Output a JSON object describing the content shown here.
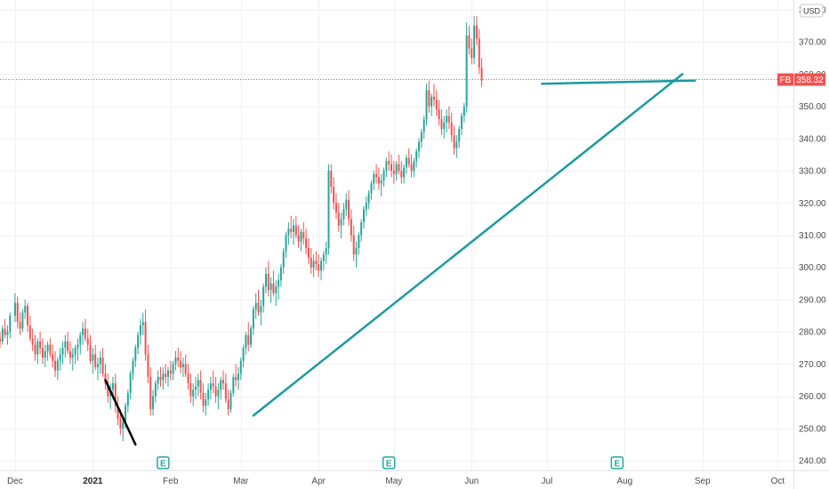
{
  "chart_data": {
    "type": "candlestick",
    "ticker": "FB",
    "currency": "USD",
    "last_price_label": "358.32",
    "last_price": 358.32,
    "ylim": [
      237,
      383
    ],
    "y_ticks": [
      240,
      250,
      260,
      270,
      280,
      290,
      300,
      310,
      320,
      330,
      340,
      350,
      360,
      370,
      380
    ],
    "x_ticks": [
      {
        "label": "Dec",
        "day": 0
      },
      {
        "label": "2021",
        "day": 31,
        "bold": true
      },
      {
        "label": "Feb",
        "day": 62
      },
      {
        "label": "Mar",
        "day": 90
      },
      {
        "label": "Apr",
        "day": 121
      },
      {
        "label": "May",
        "day": 151
      },
      {
        "label": "Jun",
        "day": 182
      },
      {
        "label": "Jul",
        "day": 212
      },
      {
        "label": "Aug",
        "day": 243
      },
      {
        "label": "Sep",
        "day": 274
      },
      {
        "label": "Oct",
        "day": 304
      }
    ],
    "x_range": [
      -6,
      306
    ],
    "earnings_markers": [
      {
        "label": "E",
        "day": 59
      },
      {
        "label": "E",
        "day": 149
      },
      {
        "label": "E",
        "day": 240
      }
    ],
    "colors": {
      "up": "#26a69a",
      "down": "#ef5350",
      "trendline": "#1a9ba0",
      "annotation": "#000000",
      "price_label_bg": "#ef5350",
      "grid": "#eef0f3"
    },
    "trendlines": [
      {
        "name": "black-decline",
        "from": {
          "day": 36,
          "price": 265
        },
        "to": {
          "day": 48,
          "price": 245
        },
        "color": "#000000"
      },
      {
        "name": "rising-support",
        "from": {
          "day": 95,
          "price": 254
        },
        "to": {
          "day": 266,
          "price": 360
        },
        "color": "#1a9ba0"
      },
      {
        "name": "horizontal-resistance",
        "from": {
          "day": 210,
          "price": 357
        },
        "to": {
          "day": 271,
          "price": 358
        },
        "color": "#1a9ba0"
      }
    ],
    "candles": [
      [
        -6,
        278,
        280,
        275,
        277
      ],
      [
        -5,
        277,
        282,
        276,
        281
      ],
      [
        -4,
        281,
        284,
        278,
        279
      ],
      [
        -3,
        279,
        282,
        276,
        280
      ],
      [
        -2,
        280,
        286,
        278,
        285
      ],
      [
        0,
        285,
        292,
        283,
        289
      ],
      [
        1,
        289,
        291,
        281,
        283
      ],
      [
        2,
        283,
        286,
        279,
        281
      ],
      [
        3,
        281,
        287,
        280,
        286
      ],
      [
        4,
        286,
        290,
        284,
        288
      ],
      [
        5,
        288,
        289,
        280,
        282
      ],
      [
        6,
        282,
        285,
        277,
        278
      ],
      [
        7,
        278,
        281,
        274,
        276
      ],
      [
        8,
        276,
        279,
        271,
        273
      ],
      [
        9,
        273,
        278,
        270,
        277
      ],
      [
        10,
        277,
        280,
        273,
        275
      ],
      [
        11,
        275,
        278,
        270,
        272
      ],
      [
        12,
        272,
        276,
        269,
        274
      ],
      [
        13,
        274,
        277,
        271,
        276
      ],
      [
        14,
        276,
        278,
        272,
        273
      ],
      [
        15,
        273,
        276,
        269,
        271
      ],
      [
        16,
        271,
        274,
        266,
        268
      ],
      [
        17,
        268,
        272,
        265,
        271
      ],
      [
        18,
        271,
        275,
        268,
        273
      ],
      [
        19,
        273,
        277,
        270,
        275
      ],
      [
        20,
        275,
        279,
        272,
        277
      ],
      [
        21,
        277,
        280,
        273,
        274
      ],
      [
        22,
        274,
        277,
        270,
        272
      ],
      [
        23,
        272,
        275,
        268,
        273
      ],
      [
        24,
        273,
        276,
        270,
        275
      ],
      [
        25,
        275,
        278,
        271,
        276
      ],
      [
        26,
        276,
        280,
        273,
        279
      ],
      [
        27,
        279,
        283,
        276,
        281
      ],
      [
        28,
        281,
        284,
        277,
        278
      ],
      [
        29,
        278,
        281,
        274,
        276
      ],
      [
        30,
        276,
        279,
        270,
        271
      ],
      [
        31,
        271,
        275,
        267,
        273
      ],
      [
        32,
        273,
        276,
        268,
        269
      ],
      [
        33,
        269,
        272,
        265,
        270
      ],
      [
        34,
        270,
        274,
        267,
        272
      ],
      [
        35,
        272,
        275,
        266,
        267
      ],
      [
        36,
        267,
        270,
        262,
        264
      ],
      [
        37,
        264,
        267,
        258,
        260
      ],
      [
        38,
        260,
        264,
        256,
        262
      ],
      [
        39,
        262,
        266,
        259,
        264
      ],
      [
        40,
        264,
        267,
        255,
        257
      ],
      [
        41,
        257,
        260,
        251,
        253
      ],
      [
        42,
        253,
        256,
        248,
        250
      ],
      [
        43,
        250,
        254,
        246,
        252
      ],
      [
        44,
        252,
        258,
        250,
        257
      ],
      [
        45,
        257,
        262,
        255,
        261
      ],
      [
        46,
        261,
        268,
        259,
        267
      ],
      [
        47,
        267,
        272,
        265,
        271
      ],
      [
        48,
        271,
        276,
        269,
        275
      ],
      [
        49,
        275,
        280,
        273,
        279
      ],
      [
        50,
        279,
        284,
        276,
        282
      ],
      [
        51,
        282,
        286,
        279,
        283
      ],
      [
        52,
        283,
        287,
        271,
        273
      ],
      [
        53,
        273,
        276,
        264,
        266
      ],
      [
        54,
        266,
        269,
        254,
        256
      ],
      [
        55,
        256,
        262,
        254,
        260
      ],
      [
        56,
        260,
        265,
        258,
        264
      ],
      [
        57,
        264,
        268,
        262,
        266
      ],
      [
        58,
        266,
        269,
        263,
        265
      ],
      [
        59,
        265,
        269,
        262,
        267
      ],
      [
        60,
        267,
        270,
        264,
        266
      ],
      [
        61,
        266,
        269,
        263,
        268
      ],
      [
        62,
        268,
        271,
        265,
        267
      ],
      [
        63,
        267,
        271,
        265,
        270
      ],
      [
        64,
        270,
        274,
        268,
        272
      ],
      [
        65,
        272,
        275,
        269,
        271
      ],
      [
        66,
        271,
        274,
        267,
        269
      ],
      [
        67,
        269,
        272,
        266,
        270
      ],
      [
        68,
        270,
        273,
        266,
        267
      ],
      [
        69,
        267,
        270,
        262,
        264
      ],
      [
        70,
        264,
        267,
        258,
        260
      ],
      [
        71,
        260,
        264,
        257,
        262
      ],
      [
        72,
        262,
        266,
        259,
        263
      ],
      [
        73,
        263,
        267,
        260,
        265
      ],
      [
        74,
        265,
        268,
        259,
        261
      ],
      [
        75,
        261,
        264,
        255,
        257
      ],
      [
        76,
        257,
        261,
        254,
        259
      ],
      [
        77,
        259,
        264,
        257,
        262
      ],
      [
        78,
        262,
        266,
        259,
        264
      ],
      [
        79,
        264,
        268,
        261,
        263
      ],
      [
        80,
        263,
        266,
        258,
        260
      ],
      [
        81,
        260,
        264,
        256,
        262
      ],
      [
        82,
        262,
        266,
        259,
        265
      ],
      [
        83,
        265,
        268,
        262,
        264
      ],
      [
        84,
        264,
        267,
        258,
        259
      ],
      [
        85,
        259,
        262,
        254,
        256
      ],
      [
        86,
        256,
        262,
        255,
        261
      ],
      [
        87,
        261,
        267,
        260,
        266
      ],
      [
        88,
        266,
        270,
        263,
        265
      ],
      [
        89,
        265,
        269,
        262,
        267
      ],
      [
        90,
        267,
        272,
        265,
        271
      ],
      [
        91,
        271,
        276,
        269,
        275
      ],
      [
        92,
        275,
        280,
        273,
        279
      ],
      [
        93,
        279,
        283,
        274,
        276
      ],
      [
        94,
        276,
        282,
        275,
        281
      ],
      [
        95,
        281,
        288,
        279,
        287
      ],
      [
        96,
        287,
        292,
        284,
        289
      ],
      [
        97,
        289,
        293,
        285,
        286
      ],
      [
        98,
        286,
        290,
        282,
        288
      ],
      [
        99,
        288,
        295,
        286,
        294
      ],
      [
        100,
        294,
        300,
        292,
        298
      ],
      [
        101,
        298,
        302,
        291,
        293
      ],
      [
        102,
        293,
        297,
        289,
        295
      ],
      [
        103,
        295,
        299,
        291,
        292
      ],
      [
        104,
        292,
        296,
        288,
        294
      ],
      [
        105,
        294,
        298,
        290,
        296
      ],
      [
        106,
        296,
        301,
        294,
        300
      ],
      [
        107,
        300,
        306,
        298,
        305
      ],
      [
        108,
        305,
        311,
        303,
        310
      ],
      [
        109,
        310,
        314,
        307,
        312
      ],
      [
        110,
        312,
        316,
        309,
        311
      ],
      [
        111,
        311,
        315,
        307,
        313
      ],
      [
        112,
        313,
        316,
        309,
        310
      ],
      [
        113,
        310,
        313,
        306,
        308
      ],
      [
        114,
        308,
        312,
        305,
        311
      ],
      [
        115,
        311,
        314,
        307,
        309
      ],
      [
        116,
        309,
        312,
        304,
        306
      ],
      [
        117,
        306,
        309,
        301,
        303
      ],
      [
        118,
        303,
        306,
        298,
        300
      ],
      [
        119,
        300,
        304,
        297,
        302
      ],
      [
        120,
        302,
        305,
        299,
        301
      ],
      [
        121,
        301,
        304,
        297,
        299
      ],
      [
        122,
        299,
        303,
        296,
        302
      ],
      [
        123,
        302,
        305,
        299,
        304
      ],
      [
        124,
        304,
        308,
        301,
        306
      ],
      [
        125,
        306,
        332,
        304,
        330
      ],
      [
        126,
        330,
        332,
        323,
        325
      ],
      [
        127,
        325,
        328,
        318,
        320
      ],
      [
        128,
        320,
        323,
        315,
        317
      ],
      [
        129,
        317,
        320,
        311,
        313
      ],
      [
        130,
        313,
        317,
        309,
        315
      ],
      [
        131,
        315,
        320,
        313,
        318
      ],
      [
        132,
        318,
        323,
        316,
        321
      ],
      [
        133,
        321,
        324,
        313,
        315
      ],
      [
        134,
        315,
        318,
        308,
        310
      ],
      [
        135,
        310,
        313,
        302,
        304
      ],
      [
        136,
        304,
        308,
        300,
        306
      ],
      [
        137,
        306,
        311,
        304,
        310
      ],
      [
        138,
        310,
        315,
        308,
        314
      ],
      [
        139,
        314,
        319,
        312,
        318
      ],
      [
        140,
        318,
        322,
        316,
        320
      ],
      [
        141,
        320,
        324,
        318,
        323
      ],
      [
        142,
        323,
        327,
        321,
        326
      ],
      [
        143,
        326,
        330,
        324,
        329
      ],
      [
        144,
        329,
        332,
        326,
        328
      ],
      [
        145,
        328,
        331,
        324,
        326
      ],
      [
        146,
        326,
        329,
        322,
        327
      ],
      [
        147,
        327,
        331,
        325,
        330
      ],
      [
        148,
        330,
        334,
        328,
        333
      ],
      [
        149,
        333,
        336,
        330,
        332
      ],
      [
        150,
        332,
        335,
        328,
        330
      ],
      [
        151,
        330,
        333,
        326,
        329
      ],
      [
        152,
        329,
        333,
        327,
        332
      ],
      [
        153,
        332,
        335,
        329,
        330
      ],
      [
        154,
        330,
        333,
        326,
        328
      ],
      [
        155,
        328,
        332,
        326,
        331
      ],
      [
        156,
        331,
        335,
        329,
        334
      ],
      [
        157,
        334,
        337,
        331,
        332
      ],
      [
        158,
        332,
        335,
        328,
        330
      ],
      [
        159,
        330,
        334,
        328,
        333
      ],
      [
        160,
        333,
        337,
        331,
        336
      ],
      [
        161,
        336,
        340,
        334,
        339
      ],
      [
        162,
        339,
        343,
        337,
        342
      ],
      [
        163,
        342,
        347,
        340,
        346
      ],
      [
        164,
        346,
        357,
        344,
        355
      ],
      [
        165,
        355,
        358,
        348,
        350
      ],
      [
        166,
        350,
        354,
        347,
        353
      ],
      [
        167,
        353,
        357,
        350,
        352
      ],
      [
        168,
        352,
        355,
        347,
        349
      ],
      [
        169,
        349,
        352,
        344,
        346
      ],
      [
        170,
        346,
        349,
        341,
        343
      ],
      [
        171,
        343,
        347,
        340,
        345
      ],
      [
        172,
        345,
        349,
        342,
        347
      ],
      [
        173,
        347,
        350,
        343,
        345
      ],
      [
        174,
        345,
        348,
        339,
        341
      ],
      [
        175,
        341,
        344,
        335,
        337
      ],
      [
        176,
        337,
        341,
        334,
        339
      ],
      [
        177,
        339,
        344,
        337,
        343
      ],
      [
        178,
        343,
        348,
        341,
        347
      ],
      [
        179,
        347,
        351,
        345,
        350
      ],
      [
        180,
        350,
        376,
        348,
        372
      ],
      [
        181,
        372,
        375,
        366,
        368
      ],
      [
        182,
        368,
        371,
        363,
        365
      ],
      [
        183,
        365,
        378,
        363,
        375
      ],
      [
        184,
        375,
        378,
        369,
        371
      ],
      [
        185,
        371,
        374,
        360,
        362
      ],
      [
        186,
        362,
        365,
        356,
        358
      ]
    ]
  }
}
